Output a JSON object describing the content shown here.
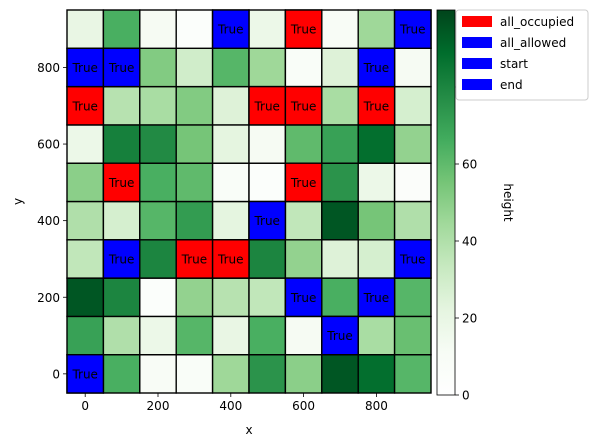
{
  "chart_data": {
    "type": "heatmap",
    "title": "",
    "xlabel": "x",
    "ylabel": "y",
    "xlim": [
      -50,
      950
    ],
    "ylim": [
      -50,
      950
    ],
    "cell_size": 100,
    "x_centers": [
      0,
      100,
      200,
      300,
      400,
      500,
      600,
      700,
      800,
      900
    ],
    "y_centers": [
      0,
      100,
      200,
      300,
      400,
      500,
      600,
      700,
      800,
      900
    ],
    "x_ticks": [
      0,
      200,
      400,
      600,
      800
    ],
    "y_ticks": [
      0,
      200,
      400,
      600,
      800
    ],
    "colormap": "Greens",
    "colorbar": {
      "label": "height",
      "ticks": [
        0,
        20,
        40,
        60,
        80
      ],
      "range": [
        0,
        100
      ]
    },
    "heights": [
      [
        90,
        65,
        10,
        8,
        45,
        75,
        50,
        95,
        88,
        62
      ],
      [
        70,
        40,
        18,
        62,
        20,
        65,
        12,
        85,
        42,
        58
      ],
      [
        95,
        80,
        5,
        48,
        38,
        35,
        72,
        65,
        60,
        62
      ],
      [
        35,
        45,
        80,
        45,
        45,
        80,
        48,
        25,
        28,
        50
      ],
      [
        40,
        28,
        62,
        72,
        22,
        58,
        35,
        95,
        55,
        40
      ],
      [
        50,
        20,
        65,
        60,
        8,
        5,
        40,
        75,
        18,
        6
      ],
      [
        18,
        82,
        78,
        55,
        22,
        12,
        60,
        70,
        88,
        48
      ],
      [
        40,
        38,
        42,
        52,
        25,
        40,
        38,
        42,
        38,
        28
      ],
      [
        45,
        35,
        52,
        30,
        62,
        45,
        8,
        25,
        42,
        12
      ],
      [
        20,
        65,
        12,
        5,
        40,
        18,
        35,
        10,
        45,
        25
      ]
    ],
    "overlays": [
      {
        "x": 0,
        "y": 0,
        "layer": "end"
      },
      {
        "x": 700,
        "y": 100,
        "layer": "start"
      },
      {
        "x": 600,
        "y": 200,
        "layer": "start"
      },
      {
        "x": 800,
        "y": 200,
        "layer": "start"
      },
      {
        "x": 100,
        "y": 300,
        "layer": "start"
      },
      {
        "x": 300,
        "y": 300,
        "layer": "all_occupied"
      },
      {
        "x": 400,
        "y": 300,
        "layer": "all_occupied"
      },
      {
        "x": 900,
        "y": 300,
        "layer": "start"
      },
      {
        "x": 500,
        "y": 400,
        "layer": "start"
      },
      {
        "x": 100,
        "y": 500,
        "layer": "all_occupied"
      },
      {
        "x": 600,
        "y": 500,
        "layer": "all_occupied"
      },
      {
        "x": 0,
        "y": 700,
        "layer": "all_occupied"
      },
      {
        "x": 500,
        "y": 700,
        "layer": "all_occupied"
      },
      {
        "x": 600,
        "y": 700,
        "layer": "all_occupied"
      },
      {
        "x": 800,
        "y": 700,
        "layer": "all_occupied"
      },
      {
        "x": 0,
        "y": 800,
        "layer": "all_allowed"
      },
      {
        "x": 100,
        "y": 800,
        "layer": "all_allowed"
      },
      {
        "x": 800,
        "y": 800,
        "layer": "all_allowed"
      },
      {
        "x": 400,
        "y": 900,
        "layer": "start"
      },
      {
        "x": 600,
        "y": 900,
        "layer": "all_occupied"
      },
      {
        "x": 900,
        "y": 900,
        "layer": "start"
      }
    ],
    "overlay_label": "True",
    "legend": {
      "placement": "outside top-right",
      "entries": [
        {
          "label": "all_occupied",
          "color": "#ff0000"
        },
        {
          "label": "all_allowed",
          "color": "#0000ff"
        },
        {
          "label": "start",
          "color": "#0000ff"
        },
        {
          "label": "end",
          "color": "#0000ff"
        }
      ]
    },
    "layer_colors": {
      "all_occupied": "#ff0000",
      "all_allowed": "#0000ff",
      "start": "#0000ff",
      "end": "#0000ff"
    },
    "grid": false
  }
}
